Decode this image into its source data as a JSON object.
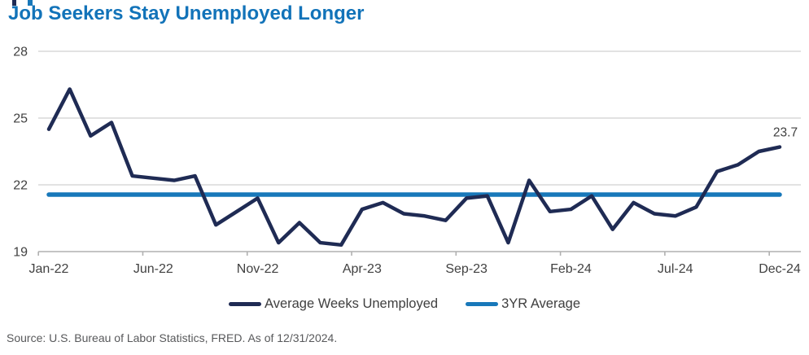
{
  "page": {
    "title": "Job Seekers Stay Unemployed Longer"
  },
  "footer": {
    "source": "Source: U.S. Bureau of Labor Statistics, FRED. As of 12/31/2024."
  },
  "colors": {
    "title": "#1273b9",
    "navy_line": "#1f2b54",
    "blue_line": "#1878ba",
    "gridline": "#d9d9d9",
    "axis": "#b0b0b0",
    "tick_text": "#414141",
    "annotation_text": "#3f3f3f",
    "legend_text": "#3f3f3f",
    "source_text": "#58595b"
  },
  "chart_data": {
    "type": "line",
    "title": "Job Seekers Stay Unemployed Longer",
    "xlabel": "",
    "ylabel": "",
    "grid": true,
    "legend_position": "bottom-center",
    "ylim": [
      19,
      28
    ],
    "y_ticks": [
      28,
      25,
      22,
      19
    ],
    "x": [
      "Jan-22",
      "Feb-22",
      "Mar-22",
      "Apr-22",
      "May-22",
      "Jun-22",
      "Jul-22",
      "Aug-22",
      "Sep-22",
      "Oct-22",
      "Nov-22",
      "Dec-22",
      "Jan-23",
      "Feb-23",
      "Mar-23",
      "Apr-23",
      "May-23",
      "Jun-23",
      "Jul-23",
      "Aug-23",
      "Sep-23",
      "Oct-23",
      "Nov-23",
      "Dec-23",
      "Jan-24",
      "Feb-24",
      "Mar-24",
      "Apr-24",
      "May-24",
      "Jun-24",
      "Jul-24",
      "Aug-24",
      "Sep-24",
      "Oct-24",
      "Nov-24",
      "Dec-24"
    ],
    "x_tick_labels": [
      "Jan-22",
      "Jun-22",
      "Nov-22",
      "Apr-23",
      "Sep-23",
      "Feb-24",
      "Jul-24",
      "Dec-24"
    ],
    "series": [
      {
        "name": "Average Weeks Unemployed",
        "color": "#1f2b54",
        "values": [
          24.5,
          26.3,
          24.2,
          24.8,
          22.4,
          22.3,
          22.2,
          22.4,
          20.2,
          20.8,
          21.4,
          19.4,
          20.3,
          19.4,
          19.3,
          20.9,
          21.2,
          20.7,
          20.6,
          20.4,
          21.4,
          21.5,
          19.4,
          22.2,
          20.8,
          20.9,
          21.5,
          20.0,
          21.2,
          20.7,
          20.6,
          21.0,
          22.6,
          22.9,
          23.5,
          23.7
        ]
      },
      {
        "name": "3YR Average",
        "color": "#1878ba",
        "constant": 21.56
      }
    ],
    "annotation": {
      "text": "23.7",
      "x": "Dec-24",
      "series": "Average Weeks Unemployed"
    }
  }
}
